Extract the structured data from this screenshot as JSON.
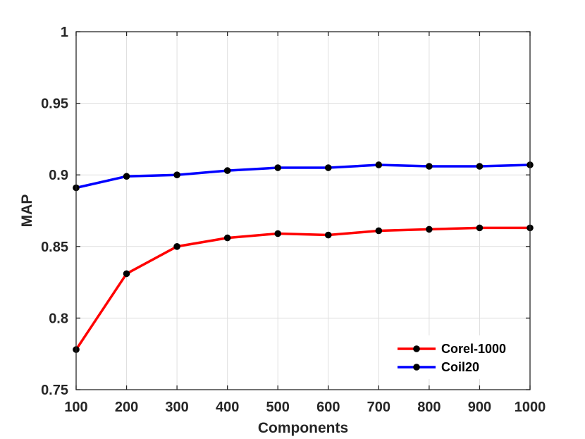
{
  "chart_data": {
    "type": "line",
    "title": "",
    "xlabel": "Components",
    "ylabel": "MAP",
    "x": [
      100,
      200,
      300,
      400,
      500,
      600,
      700,
      800,
      900,
      1000
    ],
    "xlim": [
      100,
      1000
    ],
    "ylim": [
      0.75,
      1
    ],
    "xticks": [
      100,
      200,
      300,
      400,
      500,
      600,
      700,
      800,
      900,
      1000
    ],
    "yticks": [
      0.75,
      0.8,
      0.85,
      0.9,
      0.95,
      1
    ],
    "ytick_labels": [
      "0.75",
      "0.8",
      "0.85",
      "0.9",
      "0.95",
      "1"
    ],
    "grid": true,
    "legend_position": "bottom-right",
    "series": [
      {
        "name": "Corel-1000",
        "color": "#ff0000",
        "values": [
          0.778,
          0.831,
          0.85,
          0.856,
          0.859,
          0.858,
          0.861,
          0.862,
          0.863,
          0.863
        ]
      },
      {
        "name": "Coil20",
        "color": "#0000ff",
        "values": [
          0.891,
          0.899,
          0.9,
          0.903,
          0.905,
          0.905,
          0.907,
          0.906,
          0.906,
          0.907
        ]
      }
    ],
    "marker_color": "#000000",
    "axis_color": "#262626",
    "grid_color": "#dfdfdf"
  }
}
